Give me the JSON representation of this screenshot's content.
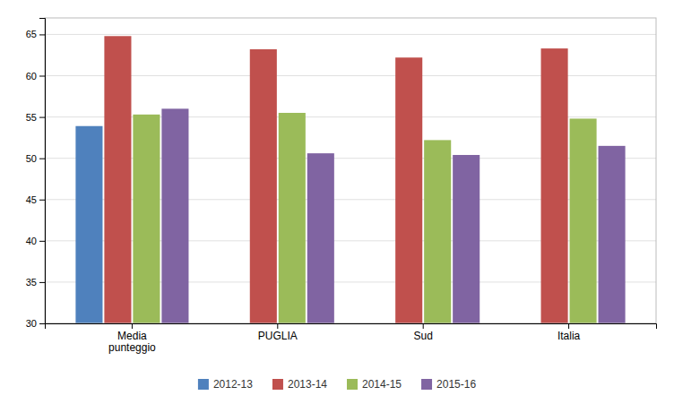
{
  "chart_data": {
    "type": "bar",
    "categories": [
      "Media\npunteggio",
      "PUGLIA",
      "Sud",
      "Italia"
    ],
    "series": [
      {
        "name": "2012-13",
        "color": "#4F81BD",
        "values": [
          53.9,
          null,
          null,
          null
        ]
      },
      {
        "name": "2013-14",
        "color": "#C0504D",
        "values": [
          64.8,
          63.2,
          62.2,
          63.3
        ]
      },
      {
        "name": "2014-15",
        "color": "#9BBB59",
        "values": [
          55.3,
          55.5,
          52.2,
          54.8
        ]
      },
      {
        "name": "2015-16",
        "color": "#8064A2",
        "values": [
          56.0,
          50.6,
          50.4,
          51.5
        ]
      }
    ],
    "ylim": [
      30,
      67
    ],
    "yticks": [
      30,
      35,
      40,
      45,
      50,
      55,
      60,
      65
    ],
    "grid": true,
    "legend": "bottom"
  }
}
